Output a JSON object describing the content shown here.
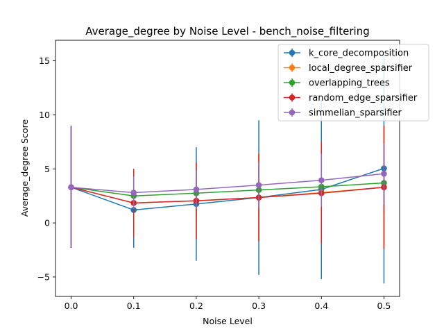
{
  "chart_data": {
    "type": "line",
    "title": "Average_degree by Noise Level - bench_noise_filtering",
    "xlabel": "Noise Level",
    "ylabel": "Average_degree Score",
    "x": [
      0.0,
      0.1,
      0.2,
      0.3,
      0.4,
      0.5
    ],
    "xticks": [
      0.0,
      0.1,
      0.2,
      0.3,
      0.4,
      0.5
    ],
    "xtick_labels": [
      "0.0",
      "0.1",
      "0.2",
      "0.3",
      "0.4",
      "0.5"
    ],
    "yticks": [
      -5,
      0,
      5,
      10,
      15
    ],
    "ytick_labels": [
      "−5",
      "0",
      "5",
      "10",
      "15"
    ],
    "xlim": [
      -0.025,
      0.525
    ],
    "ylim": [
      -6.8,
      16.9
    ],
    "grid": false,
    "legend_position": "top-right",
    "series": [
      {
        "name": "k_core_decomposition",
        "color": "#1f77b4",
        "values": [
          3.3,
          1.2,
          1.75,
          2.35,
          3.1,
          5.05
        ],
        "err_low": [
          -2.3,
          -2.3,
          -3.5,
          -4.8,
          -5.2,
          -5.6
        ],
        "err_high": [
          9.0,
          4.7,
          7.0,
          9.5,
          11.4,
          15.6
        ]
      },
      {
        "name": "local_degree_sparsifier",
        "color": "#ff7f0e",
        "values": [
          3.3,
          1.85,
          2.05,
          2.35,
          2.8,
          3.3
        ],
        "err_low": [
          -2.3,
          -1.3,
          -1.5,
          -1.7,
          -1.9,
          -2.4
        ],
        "err_high": [
          9.0,
          5.0,
          5.6,
          6.4,
          7.5,
          9.0
        ]
      },
      {
        "name": "overlapping_trees",
        "color": "#2ca02c",
        "values": [
          3.3,
          2.5,
          2.75,
          3.05,
          3.35,
          3.7
        ],
        "err_low": [
          -2.3,
          0.5,
          0.5,
          0.6,
          0.7,
          0.8
        ],
        "err_high": [
          9.0,
          4.5,
          5.0,
          5.5,
          6.0,
          6.6
        ]
      },
      {
        "name": "random_edge_sparsifier",
        "color": "#d62728",
        "values": [
          3.3,
          1.85,
          2.05,
          2.35,
          2.75,
          3.3
        ],
        "err_low": [
          -2.3,
          -1.3,
          -1.5,
          -1.7,
          -1.9,
          -2.4
        ],
        "err_high": [
          9.0,
          5.0,
          5.6,
          6.4,
          7.5,
          9.0
        ]
      },
      {
        "name": "simmelian_sparsifier",
        "color": "#9467bd",
        "values": [
          3.3,
          2.8,
          3.1,
          3.5,
          3.95,
          4.55
        ],
        "err_low": [
          -2.3,
          1.3,
          1.3,
          1.4,
          1.5,
          1.7
        ],
        "err_high": [
          9.0,
          4.3,
          4.9,
          5.6,
          6.4,
          7.4
        ]
      }
    ]
  }
}
